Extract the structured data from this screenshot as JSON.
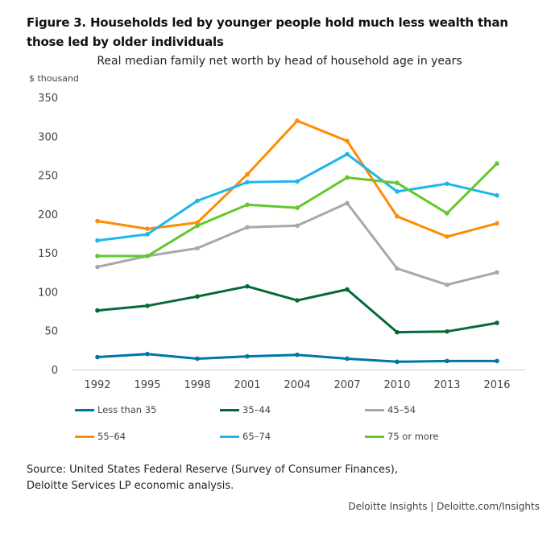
{
  "figure_title": "Figure 3. Households led by younger people hold much less wealth than those led by older individuals",
  "source_text_line1": "Source: United States Federal Reserve (Survey of Consumer Finances),",
  "source_text_line2": "Deloitte Services LP economic analysis.",
  "credit": "Deloitte Insights | Deloitte.com/Insights",
  "chart_data": {
    "type": "line",
    "title": "Real median family net worth by head of household age in years",
    "ylabel": "$ thousand",
    "xlabel": "",
    "x": [
      "1992",
      "1995",
      "1998",
      "2001",
      "2004",
      "2007",
      "2010",
      "2013",
      "2016"
    ],
    "ylim": [
      0,
      350
    ],
    "yticks": [
      0,
      50,
      100,
      150,
      200,
      250,
      300,
      350
    ],
    "grid": false,
    "legend_position": "bottom",
    "series": [
      {
        "name": "Less than 35",
        "color": "#0076A8",
        "values": [
          16,
          20,
          14,
          17,
          19,
          14,
          10,
          11,
          11
        ]
      },
      {
        "name": "35–44",
        "color": "#046A38",
        "values": [
          76,
          82,
          94,
          107,
          89,
          103,
          48,
          49,
          60
        ]
      },
      {
        "name": "45–54",
        "color": "#A7A8AA",
        "values": [
          132,
          146,
          156,
          183,
          185,
          214,
          130,
          109,
          125
        ]
      },
      {
        "name": "55–64",
        "color": "#FF8C00",
        "values": [
          191,
          181,
          189,
          251,
          320,
          294,
          197,
          171,
          188
        ]
      },
      {
        "name": "65–74",
        "color": "#1DB7EC",
        "values": [
          166,
          174,
          217,
          241,
          242,
          277,
          229,
          239,
          224
        ]
      },
      {
        "name": "75 or more",
        "color": "#62C82B",
        "values": [
          146,
          146,
          185,
          212,
          208,
          247,
          240,
          201,
          265
        ]
      }
    ]
  }
}
